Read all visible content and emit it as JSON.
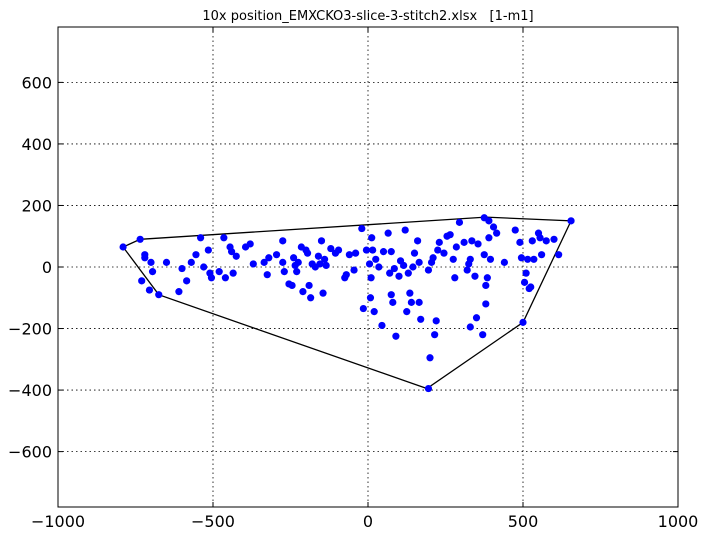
{
  "chart_data": {
    "type": "scatter",
    "title": "10x position_EMXCKO3-slice-3-stitch2.xlsx   [1-m1]",
    "xlabel": "",
    "ylabel": "",
    "xlim": [
      -1000,
      1000
    ],
    "ylim": [
      -780,
      780
    ],
    "xticks": [
      -1000,
      -500,
      0,
      500,
      1000
    ],
    "xtick_labels": [
      "−1000",
      "−500",
      "0",
      "500",
      "1000"
    ],
    "yticks": [
      -600,
      -400,
      -200,
      0,
      200,
      400,
      600
    ],
    "ytick_labels": [
      "−600",
      "−400",
      "−200",
      "0",
      "200",
      "400",
      "600"
    ],
    "grid": true,
    "point_color": "#0000ff",
    "hull_color": "#000000",
    "hull": [
      [
        -790,
        65
      ],
      [
        -735,
        90
      ],
      [
        380,
        162
      ],
      [
        655,
        150
      ],
      [
        500,
        -180
      ],
      [
        190,
        -395
      ],
      [
        -675,
        -90
      ],
      [
        -790,
        65
      ]
    ],
    "points": [
      [
        -790,
        65
      ],
      [
        -735,
        90
      ],
      [
        -730,
        -45
      ],
      [
        -720,
        30
      ],
      [
        -720,
        40
      ],
      [
        -705,
        -75
      ],
      [
        -700,
        15
      ],
      [
        -695,
        -15
      ],
      [
        -675,
        -90
      ],
      [
        -650,
        15
      ],
      [
        -610,
        -80
      ],
      [
        -600,
        -5
      ],
      [
        -585,
        -45
      ],
      [
        -570,
        15
      ],
      [
        -555,
        40
      ],
      [
        -540,
        95
      ],
      [
        -530,
        0
      ],
      [
        -515,
        55
      ],
      [
        -510,
        -20
      ],
      [
        -505,
        -35
      ],
      [
        -480,
        -15
      ],
      [
        -465,
        95
      ],
      [
        -460,
        -35
      ],
      [
        -445,
        65
      ],
      [
        -440,
        50
      ],
      [
        -435,
        -20
      ],
      [
        -425,
        35
      ],
      [
        -395,
        65
      ],
      [
        -380,
        75
      ],
      [
        -370,
        10
      ],
      [
        -335,
        15
      ],
      [
        -325,
        -25
      ],
      [
        -320,
        30
      ],
      [
        -295,
        40
      ],
      [
        -275,
        85
      ],
      [
        -275,
        15
      ],
      [
        -270,
        -15
      ],
      [
        -255,
        -55
      ],
      [
        -245,
        -60
      ],
      [
        -240,
        30
      ],
      [
        -235,
        5
      ],
      [
        -230,
        -15
      ],
      [
        -225,
        15
      ],
      [
        -215,
        65
      ],
      [
        -210,
        -80
      ],
      [
        -200,
        55
      ],
      [
        -195,
        45
      ],
      [
        -190,
        -60
      ],
      [
        -185,
        -100
      ],
      [
        -180,
        10
      ],
      [
        -170,
        0
      ],
      [
        -160,
        35
      ],
      [
        -155,
        10
      ],
      [
        -150,
        85
      ],
      [
        -145,
        -85
      ],
      [
        -140,
        25
      ],
      [
        -135,
        5
      ],
      [
        -120,
        60
      ],
      [
        -105,
        45
      ],
      [
        -95,
        55
      ],
      [
        -75,
        -35
      ],
      [
        -70,
        -25
      ],
      [
        -60,
        40
      ],
      [
        -45,
        -10
      ],
      [
        -40,
        45
      ],
      [
        -20,
        125
      ],
      [
        -15,
        -135
      ],
      [
        -5,
        55
      ],
      [
        5,
        10
      ],
      [
        8,
        -100
      ],
      [
        10,
        -35
      ],
      [
        12,
        95
      ],
      [
        15,
        55
      ],
      [
        20,
        -145
      ],
      [
        25,
        25
      ],
      [
        35,
        0
      ],
      [
        45,
        -190
      ],
      [
        50,
        50
      ],
      [
        65,
        110
      ],
      [
        70,
        -20
      ],
      [
        75,
        50
      ],
      [
        75,
        -90
      ],
      [
        80,
        -115
      ],
      [
        85,
        -5
      ],
      [
        90,
        -225
      ],
      [
        100,
        -30
      ],
      [
        105,
        20
      ],
      [
        115,
        5
      ],
      [
        120,
        120
      ],
      [
        125,
        -145
      ],
      [
        130,
        -20
      ],
      [
        135,
        -85
      ],
      [
        140,
        -115
      ],
      [
        145,
        0
      ],
      [
        150,
        45
      ],
      [
        160,
        85
      ],
      [
        165,
        -115
      ],
      [
        165,
        15
      ],
      [
        170,
        -170
      ],
      [
        195,
        -395
      ],
      [
        195,
        -10
      ],
      [
        200,
        -295
      ],
      [
        205,
        15
      ],
      [
        210,
        30
      ],
      [
        215,
        -220
      ],
      [
        220,
        -175
      ],
      [
        225,
        55
      ],
      [
        230,
        80
      ],
      [
        245,
        45
      ],
      [
        255,
        100
      ],
      [
        265,
        105
      ],
      [
        275,
        25
      ],
      [
        280,
        -35
      ],
      [
        285,
        65
      ],
      [
        295,
        145
      ],
      [
        310,
        80
      ],
      [
        320,
        -10
      ],
      [
        325,
        10
      ],
      [
        330,
        25
      ],
      [
        330,
        -195
      ],
      [
        335,
        85
      ],
      [
        345,
        -30
      ],
      [
        350,
        -165
      ],
      [
        355,
        75
      ],
      [
        370,
        -220
      ],
      [
        375,
        160
      ],
      [
        375,
        40
      ],
      [
        380,
        -120
      ],
      [
        380,
        -60
      ],
      [
        385,
        -35
      ],
      [
        390,
        95
      ],
      [
        390,
        150
      ],
      [
        395,
        25
      ],
      [
        405,
        130
      ],
      [
        415,
        110
      ],
      [
        440,
        15
      ],
      [
        475,
        120
      ],
      [
        490,
        80
      ],
      [
        495,
        30
      ],
      [
        500,
        -180
      ],
      [
        505,
        -50
      ],
      [
        510,
        -20
      ],
      [
        515,
        25
      ],
      [
        520,
        -70
      ],
      [
        525,
        -65
      ],
      [
        530,
        85
      ],
      [
        535,
        25
      ],
      [
        550,
        110
      ],
      [
        555,
        95
      ],
      [
        560,
        40
      ],
      [
        575,
        85
      ],
      [
        600,
        90
      ],
      [
        615,
        40
      ],
      [
        655,
        150
      ]
    ]
  }
}
